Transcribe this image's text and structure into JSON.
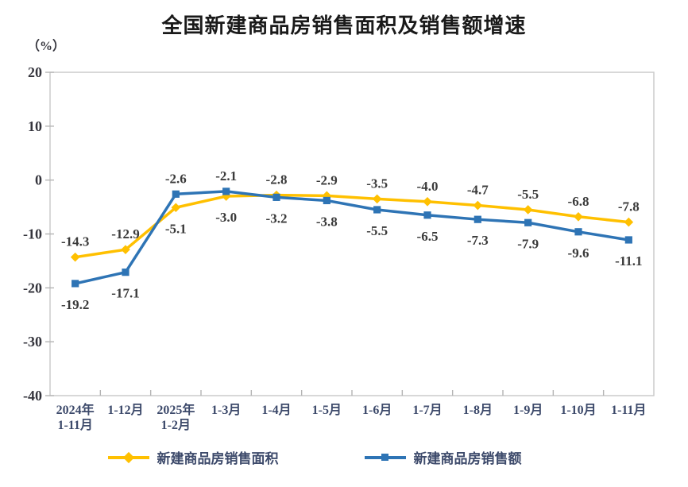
{
  "chart": {
    "title": "全国新建商品房销售面积及销售额增速",
    "unit_label": "（%）"
  },
  "chart_data": {
    "type": "line",
    "categories": [
      "2024年\n1-11月",
      "1-12月",
      "2025年\n1-2月",
      "1-3月",
      "1-4月",
      "1-5月",
      "1-6月",
      "1-7月",
      "1-8月",
      "1-9月",
      "1-10月",
      "1-11月"
    ],
    "series": [
      {
        "name": "新建商品房销售面积",
        "marker": "diamond",
        "color": "#FFC000",
        "values": [
          -14.3,
          -12.9,
          -5.1,
          -3.0,
          -2.8,
          -2.9,
          -3.5,
          -4.0,
          -4.7,
          -5.5,
          -6.8,
          -7.8
        ]
      },
      {
        "name": "新建商品房销售额",
        "marker": "square",
        "color": "#2E74B5",
        "values": [
          -19.2,
          -17.1,
          -2.6,
          -2.1,
          -3.2,
          -3.8,
          -5.5,
          -6.5,
          -7.3,
          -7.9,
          -9.6,
          -11.1
        ]
      }
    ],
    "title": "全国新建商品房销售面积及销售额增速",
    "xlabel": "",
    "ylabel": "（%）",
    "ylim": [
      -40,
      20
    ],
    "yticks": [
      20,
      10,
      0,
      -10,
      -20,
      -30,
      -40
    ],
    "grid": false,
    "data_labels": true,
    "legend_position": "bottom"
  },
  "colors": {
    "plot_border": "#c8c8c8",
    "tick": "#b4b4b4",
    "title_text": "#1a1a1a",
    "value_label_text": "#3a3a3a",
    "y_axis_label_text": "#34343c",
    "x_axis_label_text": "#3d4a6b",
    "legend_text": "#3d4a6b"
  }
}
